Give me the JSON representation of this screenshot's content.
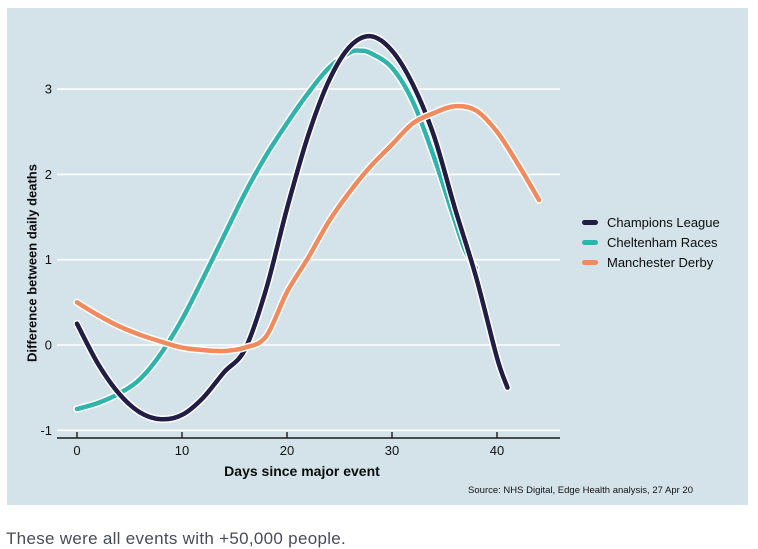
{
  "caption": "These were all events with +50,000 people.",
  "source_note": "Source: NHS Digital, Edge Health analysis, 27 Apr 20",
  "colors": {
    "panel_background": "#d4e3ea",
    "gridline": "#ffffff",
    "axis": "#1a1a1a",
    "caption_text": "#4a4a5e"
  },
  "chart_data": {
    "type": "line",
    "title": "",
    "xlabel": "Days since major event",
    "ylabel": "Difference between daily deaths",
    "x_ticks": [
      0,
      10,
      20,
      30,
      40
    ],
    "y_ticks": [
      3,
      2,
      1,
      0,
      -1
    ],
    "xlim": [
      -2,
      46
    ],
    "ylim": [
      -1.1,
      3.8
    ],
    "grid": true,
    "legend_position": "right",
    "series": [
      {
        "name": "Champions League",
        "color": "#211d45",
        "points": [
          [
            0,
            0.25
          ],
          [
            2,
            -0.22
          ],
          [
            4,
            -0.57
          ],
          [
            6,
            -0.79
          ],
          [
            8,
            -0.87
          ],
          [
            10,
            -0.82
          ],
          [
            12,
            -0.62
          ],
          [
            14,
            -0.32
          ],
          [
            16,
            -0.05
          ],
          [
            18,
            0.65
          ],
          [
            20,
            1.6
          ],
          [
            22,
            2.45
          ],
          [
            24,
            3.1
          ],
          [
            26,
            3.5
          ],
          [
            28,
            3.62
          ],
          [
            30,
            3.45
          ],
          [
            32,
            3.05
          ],
          [
            34,
            2.45
          ],
          [
            36,
            1.6
          ],
          [
            38,
            0.8
          ],
          [
            40,
            -0.15
          ],
          [
            41,
            -0.5
          ]
        ]
      },
      {
        "name": "Cheltenham Races",
        "color": "#2fb4ab",
        "points": [
          [
            0,
            -0.75
          ],
          [
            2,
            -0.68
          ],
          [
            4,
            -0.57
          ],
          [
            6,
            -0.4
          ],
          [
            8,
            -0.1
          ],
          [
            10,
            0.3
          ],
          [
            12,
            0.78
          ],
          [
            14,
            1.28
          ],
          [
            16,
            1.78
          ],
          [
            18,
            2.22
          ],
          [
            20,
            2.6
          ],
          [
            22,
            2.95
          ],
          [
            24,
            3.25
          ],
          [
            26,
            3.43
          ],
          [
            27,
            3.45
          ],
          [
            28,
            3.42
          ],
          [
            30,
            3.25
          ],
          [
            32,
            2.85
          ],
          [
            34,
            2.2
          ],
          [
            36,
            1.45
          ],
          [
            37,
            1.1
          ],
          [
            38,
            0.9
          ]
        ]
      },
      {
        "name": "Manchester Derby",
        "color": "#f18a5d",
        "points": [
          [
            0,
            0.5
          ],
          [
            2,
            0.35
          ],
          [
            4,
            0.22
          ],
          [
            6,
            0.12
          ],
          [
            8,
            0.04
          ],
          [
            10,
            -0.03
          ],
          [
            12,
            -0.06
          ],
          [
            14,
            -0.07
          ],
          [
            16,
            -0.03
          ],
          [
            18,
            0.1
          ],
          [
            20,
            0.62
          ],
          [
            22,
            1.02
          ],
          [
            24,
            1.45
          ],
          [
            26,
            1.8
          ],
          [
            28,
            2.1
          ],
          [
            30,
            2.35
          ],
          [
            32,
            2.6
          ],
          [
            34,
            2.72
          ],
          [
            36,
            2.8
          ],
          [
            38,
            2.75
          ],
          [
            40,
            2.5
          ],
          [
            42,
            2.12
          ],
          [
            44,
            1.7
          ]
        ]
      }
    ]
  }
}
